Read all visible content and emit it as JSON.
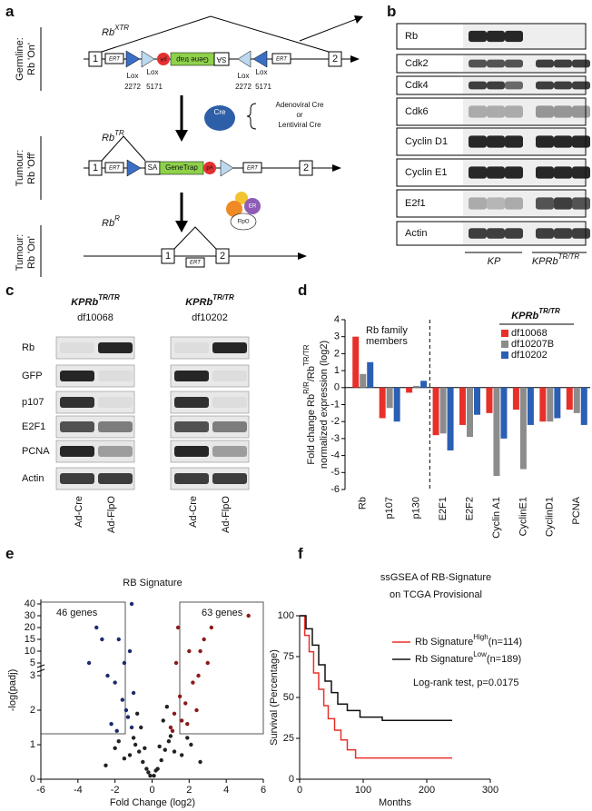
{
  "panel_a": {
    "label": "a",
    "rows": [
      {
        "side": [
          "Germline:",
          "Rb 'On'"
        ],
        "gene": "Rb",
        "sup": "XTR"
      },
      {
        "side": [
          "Tumour:",
          "Rb 'Off'"
        ],
        "gene": "Rb",
        "sup": "TR"
      },
      {
        "side": [
          "Tumour:",
          "Rb 'On'"
        ],
        "gene": "Rb",
        "sup": "R"
      }
    ],
    "exon_1": "1",
    "exon_2": "2",
    "ert": "ERT",
    "lox_a": [
      "Lox",
      "2272"
    ],
    "lox_b": [
      "Lox",
      "5171"
    ],
    "sa": "SA",
    "gene_trap": "Gene trap",
    "gene_trap_2": "GeneTrap",
    "pa": "pA",
    "cre": "Cre",
    "cre_note": [
      "Adenoviral Cre",
      "or",
      "Lentiviral Cre"
    ],
    "flpo": "FlpO",
    "er": "ER"
  },
  "panel_b": {
    "label": "b",
    "rows": [
      "Rb",
      "Cdk2",
      "Cdk4",
      "Cdk6",
      "Cyclin D1",
      "Cyclin E1",
      "E2f1",
      "Actin"
    ],
    "group_1": "KP",
    "group_2": {
      "text": "KPRb",
      "sup": "TR/TR"
    }
  },
  "panel_c": {
    "label": "c",
    "columns": [
      {
        "text": "KPRb",
        "sup": "TR/TR",
        "line": "df10068"
      },
      {
        "text": "KPRb",
        "sup": "TR/TR",
        "line": "df10202"
      }
    ],
    "rows": [
      "Rb",
      "GFP",
      "p107",
      "E2F1",
      "PCNA",
      "Actin"
    ],
    "lanes": [
      "Ad-Cre",
      "Ad-FlpO"
    ]
  },
  "chart_data": [
    {
      "panel": "d",
      "type": "bar",
      "ylabel": [
        "Fold change Rb",
        "R/R",
        "/Rb",
        "TR/TR"
      ],
      "ylabel_2": "normalized expression (log2)",
      "annotation": [
        "Rb family",
        "members"
      ],
      "legend_title": {
        "text": "KPRb",
        "sup": "TR/TR"
      },
      "categories": [
        "Rb",
        "p107",
        "p130",
        "E2F1",
        "E2F2",
        "Cyclin A1",
        "CyclinE1",
        "CyclinD1",
        "PCNA"
      ],
      "series": [
        {
          "name": "df10068",
          "color": "#e8302a",
          "values": [
            3.0,
            -1.8,
            -0.3,
            -2.8,
            -2.2,
            -1.5,
            -1.3,
            -2.0,
            -1.3
          ]
        },
        {
          "name": "df10207B",
          "color": "#8c8c8c",
          "values": [
            0.8,
            -1.2,
            0.1,
            -2.7,
            -2.9,
            -5.2,
            -4.8,
            -2.0,
            -1.5
          ]
        },
        {
          "name": "df10202",
          "color": "#2b5fb4",
          "values": [
            1.5,
            -2.0,
            0.4,
            -3.7,
            -1.6,
            -3.0,
            -2.2,
            -1.8,
            -2.2
          ]
        }
      ],
      "ylim": [
        -6,
        4
      ],
      "yticks": [
        -6,
        -5,
        -4,
        -3,
        -2,
        -1,
        0,
        1,
        2,
        3,
        4
      ]
    },
    {
      "panel": "e",
      "type": "scatter",
      "title": "RB Signature",
      "annotations": [
        "46 genes",
        "63 genes"
      ],
      "xlabel": "Fold Change (log2)",
      "ylabel": "-log(padj)",
      "xlim": [
        -6,
        6
      ],
      "xticks": [
        -6,
        -4,
        -2,
        0,
        2,
        4,
        6
      ],
      "ylim": [
        0,
        40
      ],
      "yticks": [
        0,
        1,
        2,
        3,
        5,
        10,
        15,
        20,
        30,
        40
      ],
      "series": [
        {
          "color": "#222222",
          "x": [
            -0.9,
            -0.7,
            -0.5,
            -0.3,
            -0.1,
            0.1,
            0.3,
            0.5,
            0.7,
            0.9,
            -1.2,
            -1.5,
            -2,
            1.2,
            1.6,
            2.1,
            -0.6,
            0.6,
            -0.2,
            0.2,
            -0.8,
            0.8,
            -0.4,
            0.4,
            -1,
            1,
            -2.5,
            2.6,
            -1.8,
            1.9
          ],
          "values": [
            1.0,
            0.8,
            0.5,
            0.3,
            0.1,
            0.1,
            0.3,
            0.55,
            0.85,
            1.1,
            0.7,
            0.6,
            0.9,
            0.8,
            0.7,
            1.0,
            1.5,
            1.7,
            0.2,
            0.25,
            1.9,
            2.1,
            0.9,
            0.95,
            1.2,
            1.25,
            0.4,
            0.5,
            1.1,
            1.2
          ]
        },
        {
          "color": "#1c2a6e",
          "x": [
            -1.1,
            -1.3,
            -1.6,
            -2.0,
            -2.4,
            -1.2,
            -1.8,
            -3.0,
            -1.5,
            -2.2,
            -1.0,
            -3.4,
            -2.7,
            -1.4,
            -1.9,
            -1.1
          ],
          "values": [
            1.5,
            1.8,
            2.3,
            2.8,
            3.0,
            10,
            15,
            20,
            5,
            1.6,
            2.5,
            5,
            15,
            2.0,
            1.4,
            40
          ]
        },
        {
          "color": "#8b1a1a",
          "x": [
            1.0,
            1.2,
            1.5,
            1.8,
            2.2,
            2.5,
            1.3,
            2.0,
            2.8,
            3.2,
            1.1,
            1.6,
            2.4,
            3.0,
            1.4,
            5.2,
            1.9,
            2.6
          ],
          "values": [
            1.5,
            1.9,
            2.4,
            2.2,
            2.8,
            3.0,
            5,
            10,
            15,
            20,
            1.4,
            1.7,
            2.0,
            5,
            20,
            30,
            1.6,
            10
          ]
        }
      ]
    },
    {
      "panel": "f",
      "type": "line",
      "title": [
        "ssGSEA of RB-Signature",
        "on TCGA Provisional"
      ],
      "xlabel": "Months",
      "ylabel": "Survival (Percentage)",
      "annotation": "Log-rank test, p=0.0175",
      "xlim": [
        0,
        300
      ],
      "xticks": [
        0,
        100,
        200,
        300
      ],
      "ylim": [
        0,
        100
      ],
      "yticks": [
        0,
        25,
        50,
        75,
        100
      ],
      "series": [
        {
          "name": "Rb Signature",
          "sup": "High",
          "n": "(n=114)",
          "color": "#e8302a",
          "x": [
            0,
            8,
            8,
            15,
            15,
            22,
            22,
            30,
            30,
            38,
            38,
            45,
            45,
            55,
            55,
            65,
            65,
            75,
            75,
            88,
            88,
            240
          ],
          "values": [
            100,
            100,
            88,
            88,
            78,
            78,
            65,
            65,
            55,
            55,
            45,
            45,
            37,
            37,
            30,
            30,
            24,
            24,
            18,
            18,
            13,
            13
          ]
        },
        {
          "name": "Rb Signature",
          "sup": "Low",
          "n": "(n=189)",
          "color": "#111111",
          "x": [
            0,
            10,
            10,
            20,
            20,
            30,
            30,
            40,
            40,
            50,
            50,
            60,
            60,
            75,
            75,
            95,
            95,
            130,
            130,
            240
          ],
          "values": [
            100,
            100,
            92,
            92,
            82,
            82,
            70,
            70,
            60,
            60,
            53,
            53,
            46,
            46,
            42,
            42,
            38,
            38,
            36,
            36
          ]
        }
      ]
    }
  ]
}
